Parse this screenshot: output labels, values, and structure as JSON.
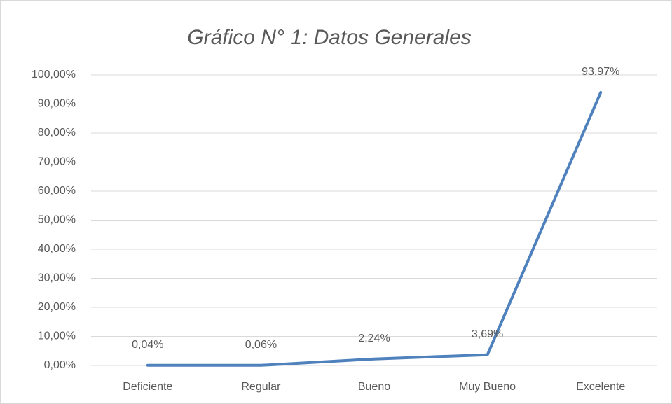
{
  "chart_data": {
    "type": "line",
    "title": "Gráfico N° 1: Datos Generales",
    "categories": [
      "Deficiente",
      "Regular",
      "Bueno",
      "Muy Bueno",
      "Excelente"
    ],
    "values": [
      0.04,
      0.06,
      2.24,
      3.69,
      93.97
    ],
    "value_labels": [
      "0,04%",
      "0,06%",
      "2,24%",
      "3,69%",
      "93,97%"
    ],
    "color": "#4f81bd",
    "ylim": [
      0,
      100
    ],
    "yticks": [
      {
        "value": 0,
        "label": "0,00%"
      },
      {
        "value": 10,
        "label": "10,00%"
      },
      {
        "value": 20,
        "label": "20,00%"
      },
      {
        "value": 30,
        "label": "30,00%"
      },
      {
        "value": 40,
        "label": "40,00%"
      },
      {
        "value": 50,
        "label": "50,00%"
      },
      {
        "value": 60,
        "label": "60,00%"
      },
      {
        "value": 70,
        "label": "70,00%"
      },
      {
        "value": 80,
        "label": "80,00%"
      },
      {
        "value": 90,
        "label": "90,00%"
      },
      {
        "value": 100,
        "label": "100,00%"
      }
    ],
    "grid": true
  }
}
